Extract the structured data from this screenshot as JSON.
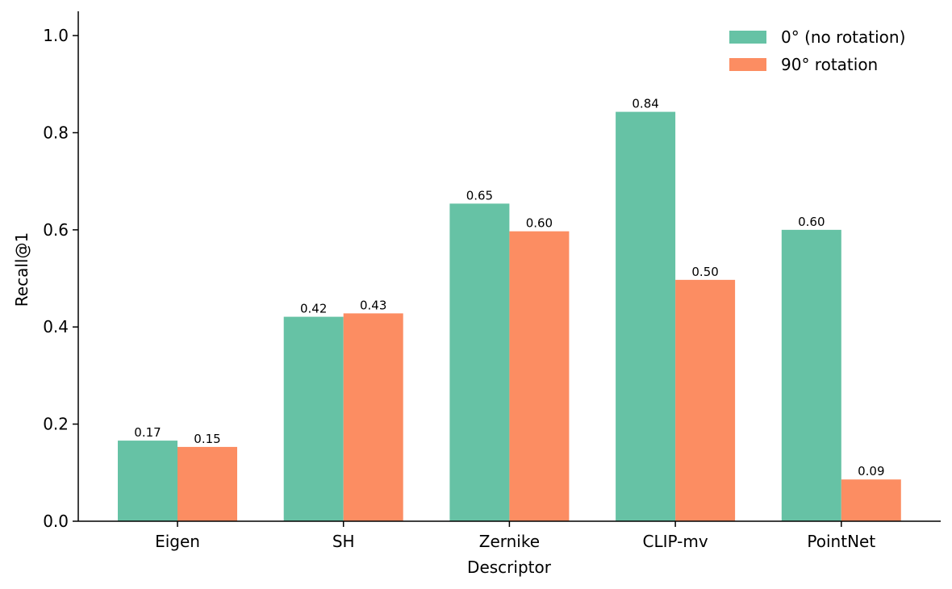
{
  "chart_data": {
    "type": "bar",
    "title": "",
    "xlabel": "Descriptor",
    "ylabel": "Recall@1",
    "categories": [
      "Eigen",
      "SH",
      "Zernike",
      "CLIP-mv",
      "PointNet"
    ],
    "series": [
      {
        "name": "0° (no rotation)",
        "color": "#66c2a5",
        "values": [
          0.166,
          0.421,
          0.654,
          0.843,
          0.6
        ]
      },
      {
        "name": "90° rotation",
        "color": "#fc8d62",
        "values": [
          0.153,
          0.428,
          0.597,
          0.497,
          0.086
        ]
      }
    ],
    "data_labels": [
      [
        "0.17",
        "0.42",
        "0.65",
        "0.84",
        "0.60"
      ],
      [
        "0.15",
        "0.43",
        "0.60",
        "0.50",
        "0.09"
      ]
    ],
    "ylim": [
      0,
      1.05
    ],
    "yticks": [
      0.0,
      0.2,
      0.4,
      0.6,
      0.8,
      1.0
    ],
    "ytick_labels": [
      "0.0",
      "0.2",
      "0.4",
      "0.6",
      "0.8",
      "1.0"
    ],
    "grid": false,
    "legend_position": "top-right"
  }
}
